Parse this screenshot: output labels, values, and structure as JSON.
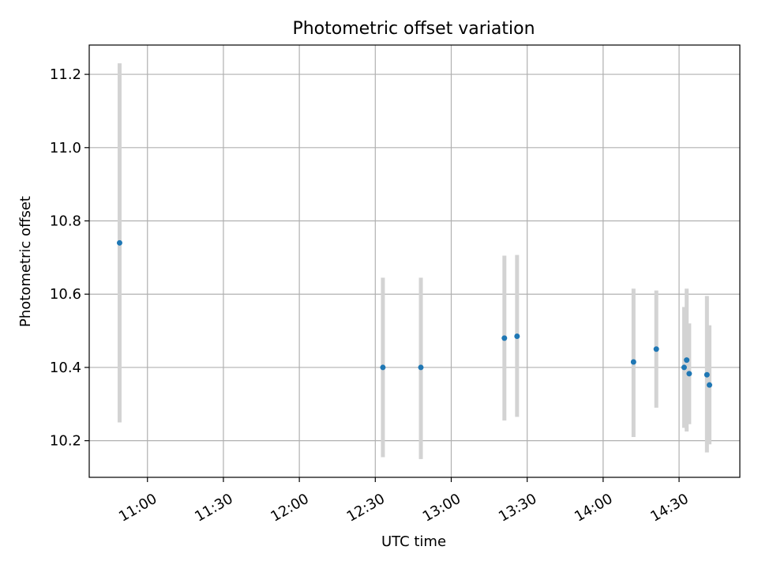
{
  "chart_data": {
    "type": "scatter",
    "title": "Photometric offset variation",
    "xlabel": "UTC time",
    "ylabel": "Photometric offset",
    "x_type": "time",
    "xlim": [
      "10:37",
      "14:54"
    ],
    "ylim": [
      10.1,
      11.28
    ],
    "x_ticks": [
      "11:00",
      "11:30",
      "12:00",
      "12:30",
      "13:00",
      "13:30",
      "14:00",
      "14:30"
    ],
    "y_ticks": [
      10.2,
      10.4,
      10.6,
      10.8,
      11.0,
      11.2
    ],
    "grid": true,
    "marker_color": "#1f77b4",
    "errorbar_color": "#d3d3d3",
    "points": [
      {
        "x": "10:49",
        "y": 10.74,
        "err_low": 10.25,
        "err_high": 11.23
      },
      {
        "x": "12:33",
        "y": 10.4,
        "err_low": 10.155,
        "err_high": 10.645
      },
      {
        "x": "12:48",
        "y": 10.4,
        "err_low": 10.15,
        "err_high": 10.645
      },
      {
        "x": "13:21",
        "y": 10.48,
        "err_low": 10.255,
        "err_high": 10.705
      },
      {
        "x": "13:26",
        "y": 10.485,
        "err_low": 10.265,
        "err_high": 10.707
      },
      {
        "x": "14:12",
        "y": 10.415,
        "err_low": 10.21,
        "err_high": 10.615
      },
      {
        "x": "14:21",
        "y": 10.45,
        "err_low": 10.29,
        "err_high": 10.61
      },
      {
        "x": "14:32",
        "y": 10.4,
        "err_low": 10.235,
        "err_high": 10.565
      },
      {
        "x": "14:33",
        "y": 10.42,
        "err_low": 10.225,
        "err_high": 10.615
      },
      {
        "x": "14:34",
        "y": 10.383,
        "err_low": 10.245,
        "err_high": 10.52
      },
      {
        "x": "14:41",
        "y": 10.38,
        "err_low": 10.168,
        "err_high": 10.595
      },
      {
        "x": "14:42",
        "y": 10.352,
        "err_low": 10.19,
        "err_high": 10.515
      }
    ]
  }
}
